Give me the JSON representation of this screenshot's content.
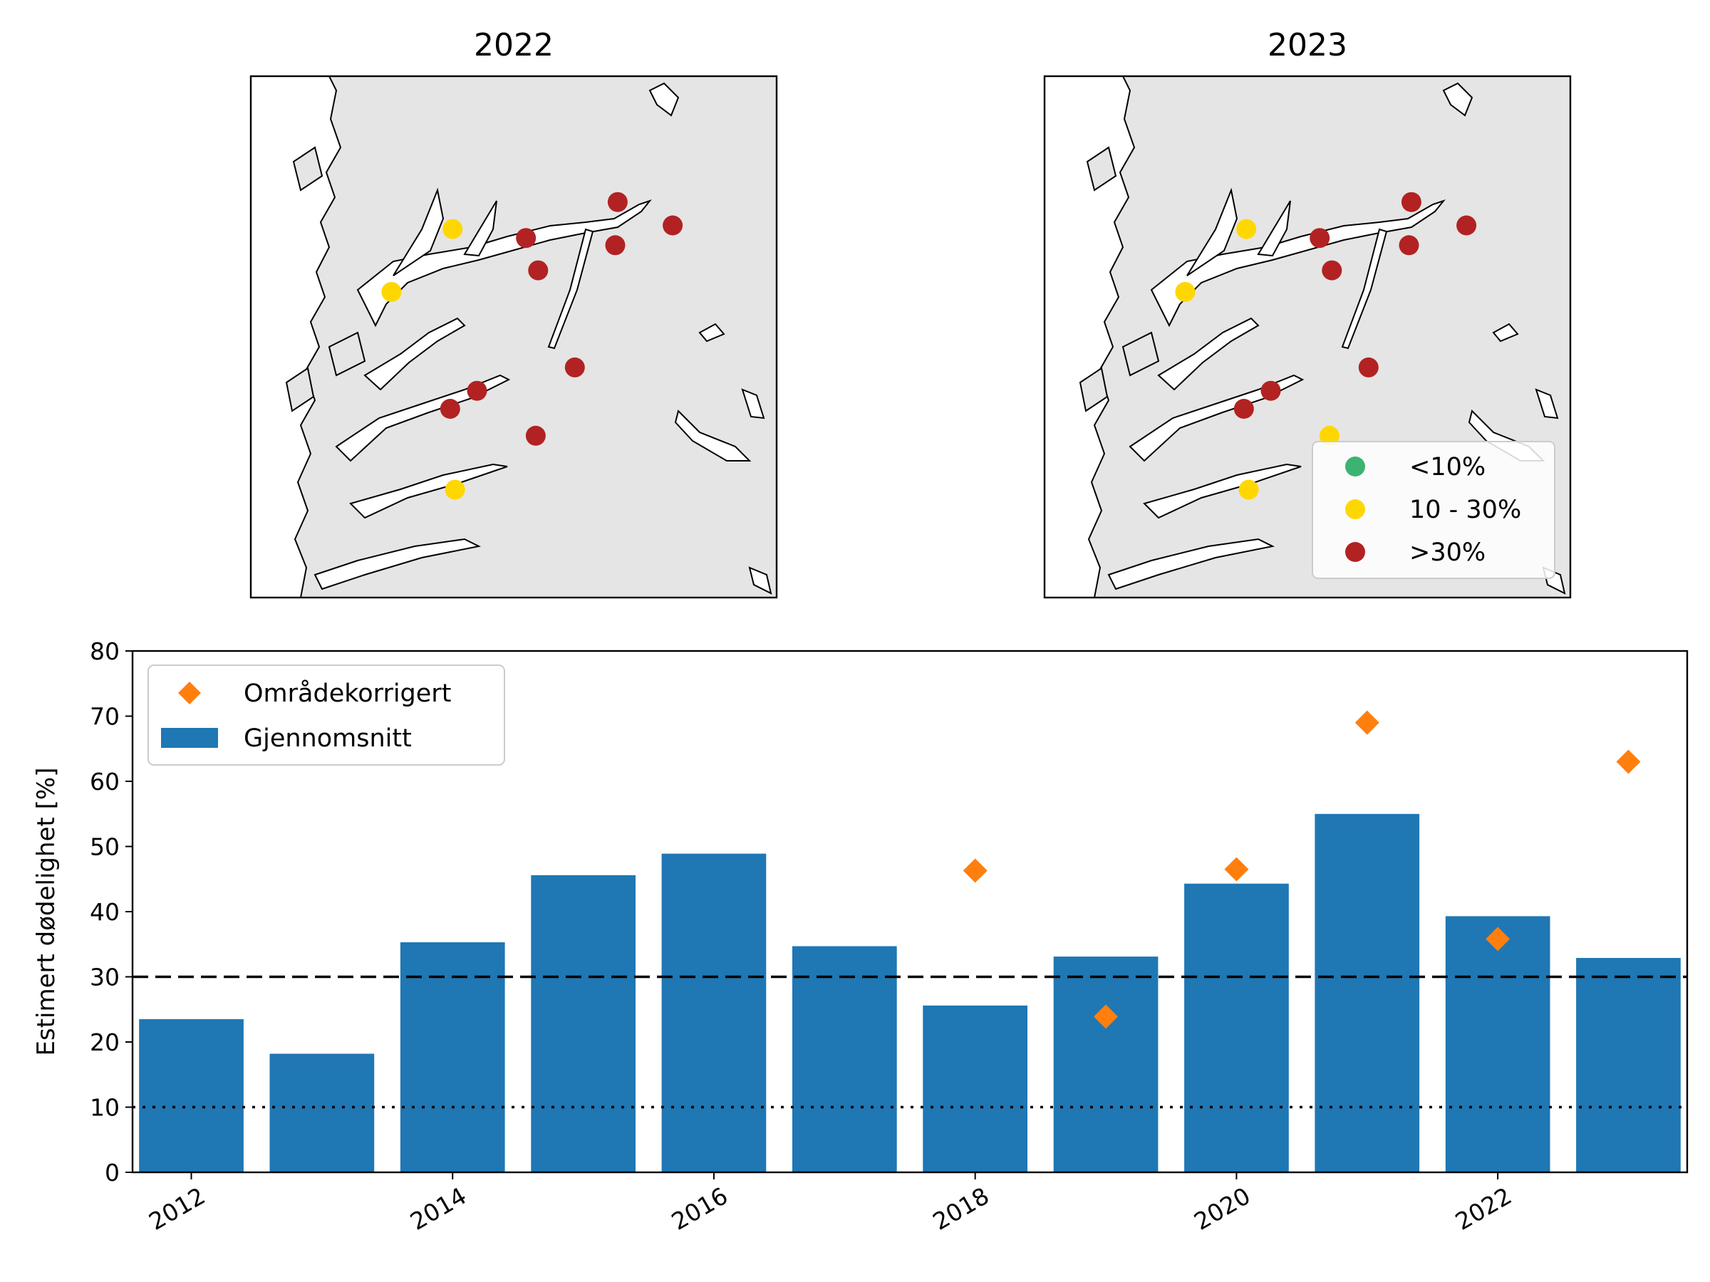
{
  "colors": {
    "land": "#e5e5e5",
    "low": "#3cb371",
    "mid": "#ffd700",
    "high": "#b22222",
    "bar": "#1f77b4",
    "marker": "#ff7f0e"
  },
  "maps": [
    {
      "title": "2022",
      "sites": [
        {
          "lon": 5.85,
          "lat": 60.95,
          "cls": "mid"
        },
        {
          "lon": 5.35,
          "lat": 60.6,
          "cls": "mid"
        },
        {
          "lon": 6.45,
          "lat": 60.9,
          "cls": "high"
        },
        {
          "lon": 6.55,
          "lat": 60.72,
          "cls": "high"
        },
        {
          "lon": 7.2,
          "lat": 61.1,
          "cls": "high"
        },
        {
          "lon": 7.18,
          "lat": 60.86,
          "cls": "high"
        },
        {
          "lon": 7.65,
          "lat": 60.97,
          "cls": "high"
        },
        {
          "lon": 6.85,
          "lat": 60.18,
          "cls": "high"
        },
        {
          "lon": 6.05,
          "lat": 60.05,
          "cls": "high"
        },
        {
          "lon": 5.83,
          "lat": 59.95,
          "cls": "high"
        },
        {
          "lon": 6.53,
          "lat": 59.8,
          "cls": "high"
        },
        {
          "lon": 5.87,
          "lat": 59.5,
          "cls": "mid"
        }
      ]
    },
    {
      "title": "2023",
      "sites": [
        {
          "lon": 5.85,
          "lat": 60.95,
          "cls": "mid"
        },
        {
          "lon": 5.35,
          "lat": 60.6,
          "cls": "mid"
        },
        {
          "lon": 6.45,
          "lat": 60.9,
          "cls": "high"
        },
        {
          "lon": 6.55,
          "lat": 60.72,
          "cls": "high"
        },
        {
          "lon": 7.2,
          "lat": 61.1,
          "cls": "high"
        },
        {
          "lon": 7.18,
          "lat": 60.86,
          "cls": "high"
        },
        {
          "lon": 7.65,
          "lat": 60.97,
          "cls": "high"
        },
        {
          "lon": 6.85,
          "lat": 60.18,
          "cls": "high"
        },
        {
          "lon": 6.05,
          "lat": 60.05,
          "cls": "high"
        },
        {
          "lon": 5.83,
          "lat": 59.95,
          "cls": "high"
        },
        {
          "lon": 6.53,
          "lat": 59.8,
          "cls": "mid"
        },
        {
          "lon": 5.87,
          "lat": 59.5,
          "cls": "mid"
        }
      ],
      "legend": [
        {
          "label": "<10%",
          "cls": "low"
        },
        {
          "label": "10 - 30%",
          "cls": "mid"
        },
        {
          "label": ">30%",
          "cls": "high"
        }
      ]
    }
  ],
  "chart_data": {
    "type": "bar",
    "x": [
      2012,
      2013,
      2014,
      2015,
      2016,
      2017,
      2018,
      2019,
      2020,
      2021,
      2022,
      2023
    ],
    "series": [
      {
        "name": "Gjennomsnitt",
        "kind": "bar",
        "values": [
          23.5,
          18.2,
          35.3,
          45.6,
          48.9,
          34.7,
          25.6,
          33.1,
          44.3,
          55.0,
          39.3,
          32.9
        ]
      },
      {
        "name": "Områdekorrigert",
        "kind": "scatter",
        "marker": "diamond",
        "x": [
          2018,
          2019,
          2020,
          2021,
          2022,
          2023
        ],
        "values": [
          46.3,
          23.9,
          46.5,
          69.0,
          35.8,
          63.0
        ]
      }
    ],
    "ylabel": "Estimert dødelighet [%]",
    "ylim": [
      0,
      80
    ],
    "yticks": [
      0,
      10,
      20,
      30,
      40,
      50,
      60,
      70,
      80
    ],
    "xticks": [
      2012,
      2014,
      2016,
      2018,
      2020,
      2022
    ],
    "hlines": [
      {
        "y": 30,
        "style": "dashed"
      },
      {
        "y": 10,
        "style": "dotted"
      }
    ],
    "legend_position": "upper-left",
    "grid": false
  }
}
